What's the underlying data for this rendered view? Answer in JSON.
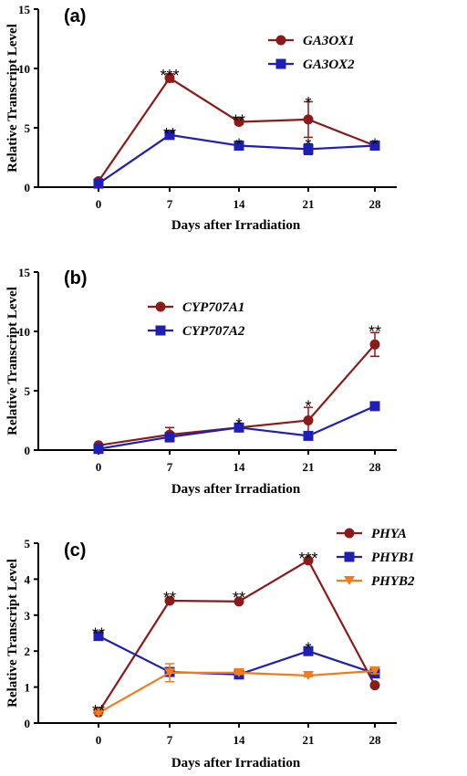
{
  "colors": {
    "red_series": "#8b1a1a",
    "blue_series": "#1f1fb4",
    "orange_series": "#f07c1e",
    "axis": "#000000"
  },
  "chart_data": [
    {
      "type": "line",
      "panel_label": "(a)",
      "xlabel": "Days after Irradiation",
      "ylabel": "Relative Transcript Level",
      "x": [
        0,
        7,
        14,
        21,
        28
      ],
      "yticks": [
        0,
        5,
        10,
        15
      ],
      "ylim": [
        0,
        15
      ],
      "legend_position": "top-right",
      "series": [
        {
          "name": "GA3OX1",
          "marker": "circle",
          "color": "#8b1a1a",
          "values": [
            0.5,
            9.2,
            5.5,
            5.7,
            3.5
          ],
          "errors": [
            0.15,
            0.35,
            0.2,
            1.5,
            0.15
          ]
        },
        {
          "name": "GA3OX2",
          "marker": "square",
          "color": "#1f1fb4",
          "values": [
            0.3,
            4.4,
            3.5,
            3.2,
            3.5
          ],
          "errors": [
            0.1,
            0.2,
            0.15,
            0.45,
            0.1
          ]
        }
      ],
      "annotations": [
        {
          "x": 7,
          "y": 9.6,
          "text": "***"
        },
        {
          "x": 14,
          "y": 5.8,
          "text": "**"
        },
        {
          "x": 21,
          "y": 7.3,
          "text": "*"
        },
        {
          "x": 7,
          "y": 4.7,
          "text": "**"
        },
        {
          "x": 14,
          "y": 3.8,
          "text": "*"
        },
        {
          "x": 21,
          "y": 3.8,
          "text": "*"
        },
        {
          "x": 28,
          "y": 3.8,
          "text": "*"
        }
      ]
    },
    {
      "type": "line",
      "panel_label": "(b)",
      "xlabel": "Days after Irradiation",
      "ylabel": "Relative Transcript Level",
      "x": [
        0,
        7,
        14,
        21,
        28
      ],
      "yticks": [
        0,
        5,
        10,
        15
      ],
      "ylim": [
        0,
        15
      ],
      "legend_position": "top-left",
      "series": [
        {
          "name": "CYP707A1",
          "marker": "circle",
          "color": "#8b1a1a",
          "values": [
            0.4,
            1.3,
            1.9,
            2.5,
            8.9
          ],
          "errors": [
            0.1,
            0.6,
            0.1,
            1.1,
            1.0
          ]
        },
        {
          "name": "CYP707A2",
          "marker": "square",
          "color": "#1f1fb4",
          "values": [
            0.1,
            1.1,
            1.9,
            1.2,
            3.7
          ],
          "errors": [
            0.05,
            0.1,
            0.1,
            0.1,
            0.1
          ]
        }
      ],
      "annotations": [
        {
          "x": 14,
          "y": 2.4,
          "text": "*"
        },
        {
          "x": 21,
          "y": 3.9,
          "text": "*"
        },
        {
          "x": 28,
          "y": 10.2,
          "text": "**"
        }
      ]
    },
    {
      "type": "line",
      "panel_label": "(c)",
      "xlabel": "Days after Irradiation",
      "ylabel": "Relative Transcript Level",
      "x": [
        0,
        7,
        14,
        21,
        28
      ],
      "yticks": [
        0,
        1,
        2,
        3,
        4,
        5
      ],
      "ylim": [
        0,
        5
      ],
      "legend_position": "top-right",
      "series": [
        {
          "name": "PHYA",
          "marker": "circle",
          "color": "#8b1a1a",
          "values": [
            0.3,
            3.4,
            3.38,
            4.52,
            1.05
          ],
          "errors": [
            0.05,
            0.05,
            0.05,
            0.05,
            0.05
          ]
        },
        {
          "name": "PHYB1",
          "marker": "square",
          "color": "#1f1fb4",
          "values": [
            2.42,
            1.42,
            1.35,
            2.0,
            1.38
          ],
          "errors": [
            0.05,
            0.05,
            0.05,
            0.05,
            0.05
          ]
        },
        {
          "name": "PHYB2",
          "marker": "triangle-down",
          "color": "#f07c1e",
          "values": [
            0.28,
            1.4,
            1.4,
            1.32,
            1.45
          ],
          "errors": [
            0.03,
            0.25,
            0.05,
            0.03,
            0.08
          ]
        }
      ],
      "annotations": [
        {
          "x": 0,
          "y": 2.55,
          "text": "**"
        },
        {
          "x": 0,
          "y": 0.4,
          "text": "**"
        },
        {
          "x": 7,
          "y": 3.55,
          "text": "**"
        },
        {
          "x": 14,
          "y": 3.55,
          "text": "**"
        },
        {
          "x": 21,
          "y": 4.65,
          "text": "***"
        },
        {
          "x": 21,
          "y": 2.15,
          "text": "*"
        }
      ]
    }
  ]
}
